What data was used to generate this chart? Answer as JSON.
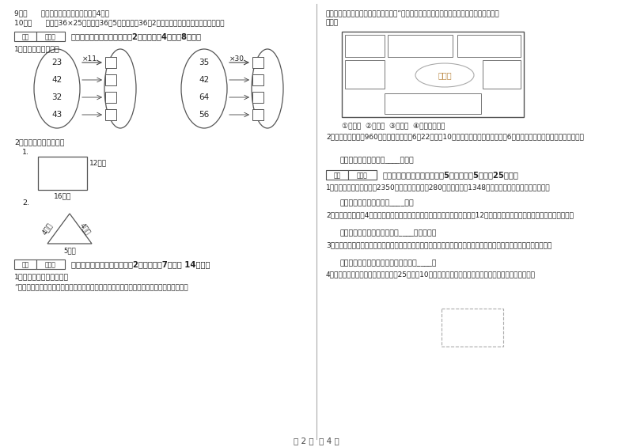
{
  "bg_color": "#ffffff",
  "text_color": "#333333",
  "page_width": 8.0,
  "page_height": 5.65,
  "title_bottom": "第 2 页  共 4 页",
  "left_col": {
    "items_top": [
      "9．（      ）正方形的周长是它的边长的4倍。",
      "10．（      ）计甧36×25时，先抄36和5相乘，再抄36和2相乘，最后把两次乘得的结果相加。"
    ],
    "section4_title": "四、看清题目，细心计算（刱2小题，每题4分，刱8分）。",
    "sub1": "1、算一算，填一填。",
    "ellipse1_nums": [
      "23",
      "42",
      "32",
      "43"
    ],
    "ellipse1_op": "×11",
    "ellipse2_nums": [
      "35",
      "42",
      "64",
      "56"
    ],
    "ellipse2_op": "×30",
    "sub2": "2、求下面图形的周长。",
    "rect_label1": "12厘米",
    "rect_label2": "16厘米",
    "triangle_labels": [
      "4分米",
      "4分米",
      "5分米"
    ],
    "section5_title": "五、认真思考，综合能力（刱2小题，每题7分，共 14分）。",
    "q5_1": "1、仔细观察，认真填空。",
    "q5_1_text": "“走进服装城大门，正北面是假山石和童装区，假山石的东面是中老年服装区，假山石的西北"
  },
  "right_col": {
    "text_top1": "边是男装区，男装区的南边是女装区。”。根据以上的描述请你把服装城的序号标在适当的位",
    "text_top2": "置上。",
    "store_labels": [
      "①童装区",
      "②男装区",
      "③女装区",
      "④中老年服装区"
    ],
    "fake_mountain": "假山石",
    "q5_2": "2、甲乙两城铁路长960千米，一列客车于6月22日上午10时从甲城开往乙城，当日晚上6时到达，这列火车每小时行多少千米？",
    "ans2": "答：这列火车每小时行____千米。",
    "section6_title": "六、活用知识，解决问题（刱5小题，每题5分，剣25分）。",
    "q6_1": "1、学校图书室原有故事晨2350本，现在又买来了280本，并借出了1348本，现在图书室有故事书多少本？",
    "ans6_1": "答：现在图书室有故事书____本。",
    "q6_2": "2、小华有一张边长4分米的手工纸，小伟的一张正方形手工纸边长比小华的短12厘米，小华的手工纸比小伟的大多少平方厘米？",
    "ans6_2": "答：小华的手工纸比小伟的大____平方厘米。",
    "q6_3": "3、王大伯家有一块菜地，他把其中的七分之二种白菜，七分之三种萝卜，种白菜和萝卜的地一共是这块地的几分之几？",
    "ans6_3": "答：种白菜和萝卜的地一共是这块地的____。",
    "q6_4": "4、王大妈沿着一条河用篱笆围一个长25米，宽10米的长方形菜地，最少需要准备多长的篱笆？（见下图）"
  }
}
